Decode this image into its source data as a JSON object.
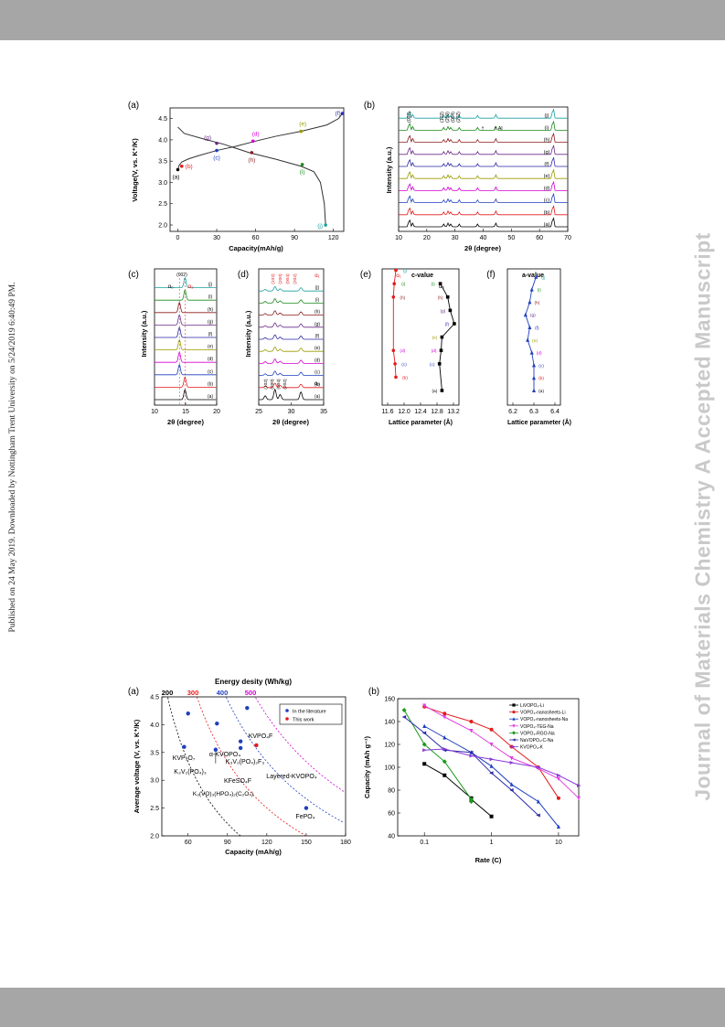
{
  "watermark": "Journal of Materials Chemistry A Accepted Manuscript",
  "side_note": "Published on 24 May 2019. Downloaded by Nottingham Trent University on 5/24/2019 6:40:49 PM.",
  "colors": {
    "a": "#000000",
    "b": "#e41a1c",
    "c": "#1f3fbf",
    "d": "#d400d4",
    "e": "#9a9a00",
    "f": "#2a2aa6",
    "g": "#6a2a8a",
    "h": "#8b1a1a",
    "i": "#1a8a1a",
    "j": "#1aa0a0"
  },
  "panel_labels": {
    "a": "(a)",
    "b": "(b)",
    "c": "(c)",
    "d": "(d)",
    "e": "(e)",
    "f": "(f)"
  },
  "fig1": {
    "a": {
      "ylabel": "Voltage(V, vs. K⁺/K)",
      "xlabel": "Capacity(mAh/g)",
      "xticks": [
        "0",
        "30",
        "60",
        "90",
        "120"
      ],
      "yticks": [
        "2.0",
        "2.5",
        "3.0",
        "3.5",
        "4.0",
        "4.5"
      ],
      "points": [
        "(a)",
        "(b)",
        "(c)",
        "(d)",
        "(e)",
        "(f)",
        "(g)",
        "(h)",
        "(i)",
        "(j)"
      ]
    },
    "b": {
      "ylabel": "Intensity (a.u.)",
      "xlabel": "2θ (degree)",
      "xticks": [
        "10",
        "20",
        "30",
        "40",
        "50",
        "60",
        "70"
      ],
      "peaks": [
        "(002)",
        "(102)",
        "(200)",
        "(004)",
        "(202)"
      ],
      "al": "Al",
      "traces": [
        "(a)",
        "(b)",
        "(c)",
        "(d)",
        "(e)",
        "(f)",
        "(g)",
        "(h)",
        "(i)",
        "(j)"
      ]
    },
    "c": {
      "ylabel": "Intensity (a.u.)",
      "xlabel": "2θ (degree)",
      "xticks": [
        "10",
        "15",
        "20"
      ],
      "peak": "(002)",
      "phase_left": "α₀",
      "phase_right": "α₁"
    },
    "d": {
      "ylabel": "Intensity (a.u.)",
      "xlabel": "2θ (degree)",
      "xticks": [
        "25",
        "30",
        "35"
      ],
      "peaks": [
        "(102)",
        "(200)",
        "(004)",
        "(202)"
      ],
      "phase_top": "α₁",
      "phase_bottom": "α₀"
    },
    "e": {
      "title": "c-value",
      "xlabel": "Lattice parameter (Å)",
      "xticks": [
        "11.6",
        "12.0",
        "12.4",
        "12.8",
        "13.2"
      ],
      "phase_red": "α₁",
      "phase_black": "α₀"
    },
    "f": {
      "title": "a-value",
      "xlabel": "Lattice parameter (Å)",
      "xticks": [
        "6.2",
        "6.3",
        "6.4"
      ]
    }
  },
  "fig2a": {
    "top_title": "Energy desity (Wh/kg)",
    "top_ticks": [
      "200",
      "300",
      "400",
      "500"
    ],
    "xlabel": "Capacity (mAh/g)",
    "ylabel": "Average voltage (V, vs. K⁺/K)",
    "xticks": [
      "60",
      "90",
      "120",
      "150",
      "180"
    ],
    "yticks": [
      "2.0",
      "2.5",
      "3.0",
      "3.5",
      "4.0",
      "4.5"
    ],
    "legend": [
      {
        "label": "In the literature",
        "color": "#1f3fbf"
      },
      {
        "label": "This work",
        "color": "#e41a1c"
      }
    ],
    "materials": [
      "KVP₂O₇",
      "KVPO₄F",
      "α-KVOPO₄",
      "K₃V₂(PO₄)₃",
      "K₃V₂(PO₄)₂F₃",
      "KFeSO₄F",
      "Layered-KVOPO₄",
      "K₃(VO)₃(HPO₄)₂(C₂O₄)",
      "FePO₄"
    ],
    "chart_data": {
      "type": "scatter",
      "xlabel": "Capacity (mAh/g)",
      "ylabel": "Average voltage (V, vs. K⁺/K)",
      "xlim": [
        40,
        180
      ],
      "ylim": [
        2.0,
        4.5
      ],
      "series": [
        {
          "name": "In the literature",
          "points": [
            {
              "label": "KVP₂O₇",
              "x": 60,
              "y": 4.2
            },
            {
              "label": "KVPO₄F",
              "x": 105,
              "y": 4.3
            },
            {
              "label": "α-KVOPO₄",
              "x": 82,
              "y": 4.02
            },
            {
              "label": "K₃V₂(PO₄)₃",
              "x": 57,
              "y": 3.6
            },
            {
              "label": "K₃V₂(PO₄)₂F₃",
              "x": 100,
              "y": 3.7
            },
            {
              "label": "KFeSO₄F",
              "x": 100,
              "y": 3.58
            },
            {
              "label": "K₃(VO)₃(HPO₄)₂(C₂O₄)",
              "x": 81,
              "y": 3.55
            },
            {
              "label": "FePO₄",
              "x": 150,
              "y": 2.5
            }
          ]
        },
        {
          "name": "This work",
          "points": [
            {
              "label": "Layered-KVOPO₄",
              "x": 112,
              "y": 3.63
            }
          ]
        }
      ]
    }
  },
  "fig2b": {
    "xlabel": "Rate (C)",
    "ylabel": "Capacity (mAh g⁻¹)",
    "xticks": [
      "0.1",
      "1",
      "10"
    ],
    "yticks": [
      "40",
      "60",
      "80",
      "100",
      "120",
      "140",
      "160"
    ],
    "chart_data": {
      "type": "line",
      "xscale": "log",
      "xlim": [
        0.04,
        20
      ],
      "ylim": [
        40,
        160
      ],
      "xlabel": "Rate (C)",
      "ylabel": "Capacity (mAh g⁻¹)",
      "series": [
        {
          "name": "LiVOPO₄-Li",
          "color": "#000000",
          "marker": "square",
          "x": [
            0.1,
            0.2,
            0.5,
            0.5,
            1
          ],
          "y": [
            103,
            93,
            73,
            72,
            57
          ]
        },
        {
          "name": "VOPO₄-nanosheets-Li",
          "color": "#e41a1c",
          "marker": "circle",
          "x": [
            0.1,
            0.2,
            0.5,
            1,
            2,
            5,
            10
          ],
          "y": [
            153,
            147,
            140,
            133,
            118,
            100,
            73
          ]
        },
        {
          "name": "VOPO₄-nanosheets-Na",
          "color": "#1f3fbf",
          "marker": "triangle-up",
          "x": [
            0.1,
            0.2,
            0.5,
            1,
            2,
            5,
            10
          ],
          "y": [
            136,
            126,
            113,
            101,
            85,
            70,
            48
          ]
        },
        {
          "name": "VOPO₄-TEG-Na",
          "color": "#e040e0",
          "marker": "triangle-down",
          "x": [
            0.1,
            0.2,
            0.5,
            1,
            2,
            5,
            10,
            20
          ],
          "y": [
            154,
            144,
            132,
            120,
            108,
            99,
            90,
            73
          ]
        },
        {
          "name": "VOPO₄-RGO-Na",
          "color": "#1a9a1a",
          "marker": "diamond",
          "x": [
            0.05,
            0.1,
            0.2,
            0.5,
            0.5
          ],
          "y": [
            150,
            120,
            105,
            72,
            70
          ]
        },
        {
          "name": "NaVOPO₄-C-Na",
          "color": "#2a2aa6",
          "marker": "triangle-left",
          "x": [
            0.05,
            0.1,
            0.2,
            0.5,
            1,
            2,
            5
          ],
          "y": [
            144,
            130,
            115,
            113,
            95,
            80,
            58
          ]
        },
        {
          "name": "KVOPO₄-K",
          "color": "#8a3ad8",
          "marker": "triangle-right",
          "x": [
            0.1,
            0.2,
            0.5,
            1,
            2,
            5,
            10,
            20
          ],
          "y": [
            115,
            116,
            110,
            107,
            104,
            100,
            93,
            84
          ]
        }
      ]
    }
  }
}
